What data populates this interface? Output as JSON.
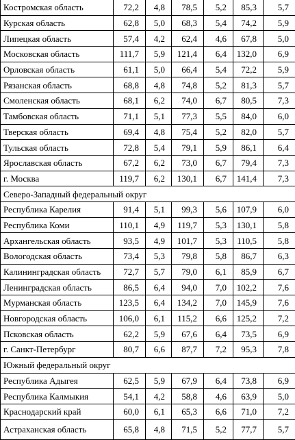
{
  "table": {
    "rows": [
      [
        "Костромская область",
        "72,2",
        "4,8",
        "78,5",
        "5,2",
        "85,3",
        "5,7"
      ],
      [
        "Курская область",
        "62,8",
        "5,0",
        "68,3",
        "5,4",
        "74,2",
        "5,9"
      ],
      [
        "Липецкая область",
        "57,4",
        "4,2",
        "62,4",
        "4,6",
        "67,8",
        "5,0"
      ],
      [
        "Московская область",
        "111,7",
        "5,9",
        "121,4",
        "6,4",
        "132,0",
        "6,9"
      ],
      [
        "Орловская область",
        "61,1",
        "5,0",
        "66,4",
        "5,4",
        "72,2",
        "5,9"
      ],
      [
        "Рязанская область",
        "68,8",
        "4,8",
        "74,8",
        "5,2",
        "81,3",
        "5,7"
      ],
      [
        "Смоленская область",
        "68,1",
        "6,2",
        "74,0",
        "6,7",
        "80,5",
        "7,3"
      ],
      [
        "Тамбовская область",
        "71,1",
        "5,1",
        "77,3",
        "5,5",
        "84,0",
        "6,0"
      ],
      [
        "Тверская область",
        "69,4",
        "4,8",
        "75,4",
        "5,2",
        "82,0",
        "5,7"
      ],
      [
        "Тульская область",
        "72,8",
        "5,4",
        "79,1",
        "5,9",
        "86,1",
        "6,4"
      ],
      [
        "Ярославская область",
        "67,2",
        "6,2",
        "73,0",
        "6,7",
        "79,4",
        "7,3"
      ],
      [
        "г. Москва",
        "119,7",
        "6,2",
        "130,1",
        "6,7",
        "141,4",
        "7,3"
      ],
      [
        "Северо-Западный федеральный округ"
      ],
      [
        "Республика Карелия",
        "91,4",
        "5,1",
        "99,3",
        "5,6",
        "107,9",
        "6,0"
      ],
      [
        "Республика Коми",
        "110,1",
        "4,9",
        "119,7",
        "5,3",
        "130,1",
        "5,8"
      ],
      [
        "Архангельская область",
        "93,5",
        "4,9",
        "101,7",
        "5,3",
        "110,5",
        "5,8"
      ],
      [
        "Вологодская область",
        "73,4",
        "5,3",
        "79,8",
        "5,8",
        "86,7",
        "6,3"
      ],
      [
        "Калининградская область",
        "72,7",
        "5,7",
        "79,0",
        "6,1",
        "85,9",
        "6,7"
      ],
      [
        "Ленинградская область",
        "86,5",
        "6,4",
        "94,0",
        "7,0",
        "102,2",
        "7,6"
      ],
      [
        "Мурманская область",
        "123,5",
        "6,4",
        "134,2",
        "7,0",
        "145,9",
        "7,6"
      ],
      [
        "Новгородская область",
        "106,0",
        "6,1",
        "115,2",
        "6,6",
        "125,2",
        "7,2"
      ],
      [
        "Псковская область",
        "62,2",
        "5,9",
        "67,6",
        "6,4",
        "73,5",
        "6,9"
      ],
      [
        "г. Санкт-Петербург",
        "80,7",
        "6,6",
        "87,7",
        "7,2",
        "95,3",
        "7,8"
      ],
      [
        "Южный федеральный округ"
      ],
      [
        "Республика Адыгея",
        "62,5",
        "5,9",
        "67,9",
        "6,4",
        "73,8",
        "6,9"
      ],
      [
        "Республика Калмыкия",
        "54,1",
        "4,2",
        "58,8",
        "4,6",
        "63,9",
        "5,0"
      ],
      [
        "Краснодарский край",
        "60,0",
        "6,1",
        "65,3",
        "6,6",
        "71,0",
        "7,2"
      ],
      [
        "Астраханская область",
        "65,8",
        "4,8",
        "71,5",
        "5,2",
        "77,7",
        "5,7"
      ]
    ]
  }
}
